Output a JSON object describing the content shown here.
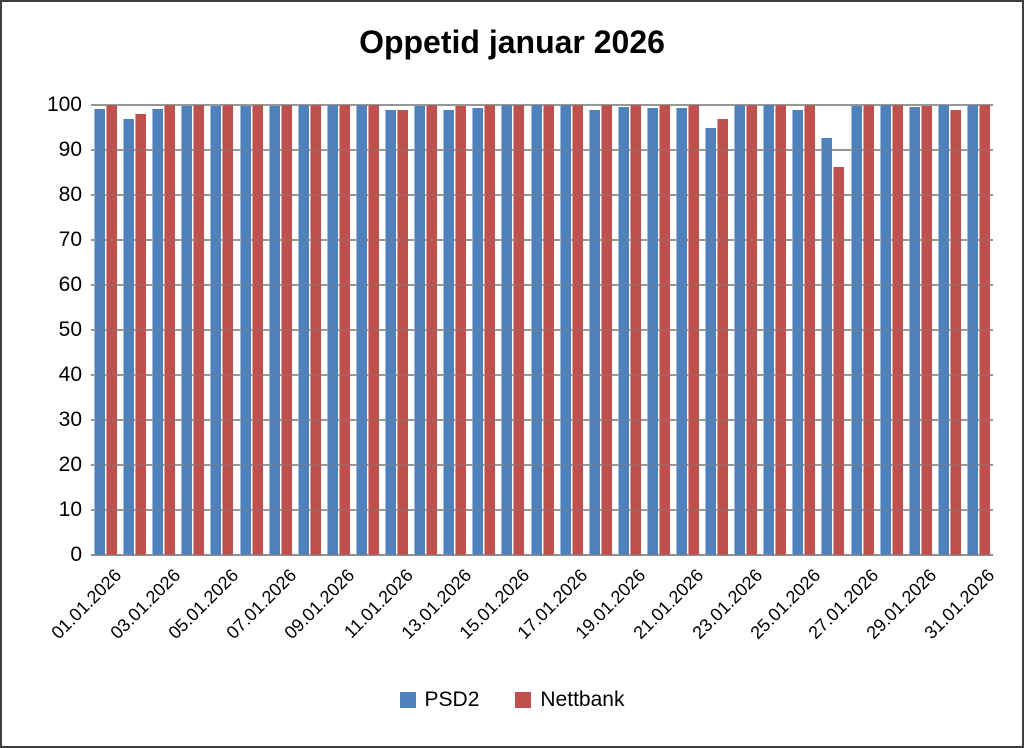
{
  "chart_data": {
    "type": "bar",
    "title": "Oppetid januar 2026",
    "categories": [
      "01.01.2026",
      "02.01.2026",
      "03.01.2026",
      "04.01.2026",
      "05.01.2026",
      "06.01.2026",
      "07.01.2026",
      "08.01.2026",
      "09.01.2026",
      "10.01.2026",
      "11.01.2026",
      "12.01.2026",
      "13.01.2026",
      "14.01.2026",
      "15.01.2026",
      "16.01.2026",
      "17.01.2026",
      "18.01.2026",
      "19.01.2026",
      "20.01.2026",
      "21.01.2026",
      "22.01.2026",
      "23.01.2026",
      "24.01.2026",
      "25.01.2026",
      "26.01.2026",
      "27.01.2026",
      "28.01.2026",
      "29.01.2026",
      "30.01.2026",
      "31.01.2026"
    ],
    "xtick_labels": [
      "01.01.2026",
      "03.01.2026",
      "05.01.2026",
      "07.01.2026",
      "09.01.2026",
      "11.01.2026",
      "13.01.2026",
      "15.01.2026",
      "17.01.2026",
      "19.01.2026",
      "21.01.2026",
      "23.01.2026",
      "25.01.2026",
      "27.01.2026",
      "29.01.2026",
      "31.01.2026"
    ],
    "series": [
      {
        "name": "PSD2",
        "color": "#4F81BD",
        "values": [
          99.2,
          96.8,
          99.2,
          99.8,
          99.8,
          99.7,
          99.7,
          100,
          100,
          100,
          99,
          99.7,
          99,
          99.3,
          100,
          100,
          100,
          98.9,
          99.6,
          99.4,
          99.4,
          94.8,
          100,
          100,
          98.8,
          92.7,
          99.8,
          100,
          99.5,
          100,
          100
        ]
      },
      {
        "name": "Nettbank",
        "color": "#C0504D",
        "values": [
          100,
          97.9,
          100,
          100,
          100,
          100,
          100,
          100,
          100,
          100,
          99,
          100,
          99.8,
          100,
          100,
          100,
          100,
          100,
          100,
          100,
          100,
          97,
          100,
          100,
          100,
          86.2,
          100,
          100,
          99.7,
          98.9,
          100
        ]
      }
    ],
    "ylim": [
      0,
      100
    ],
    "ytick_step": 10,
    "ytick_labels": [
      "100",
      "90",
      "80",
      "70",
      "60",
      "50",
      "40",
      "30",
      "20",
      "10",
      "0"
    ],
    "grid": "horizontal",
    "gridline_color": "#a6a6a6",
    "legend_position": "bottom"
  }
}
